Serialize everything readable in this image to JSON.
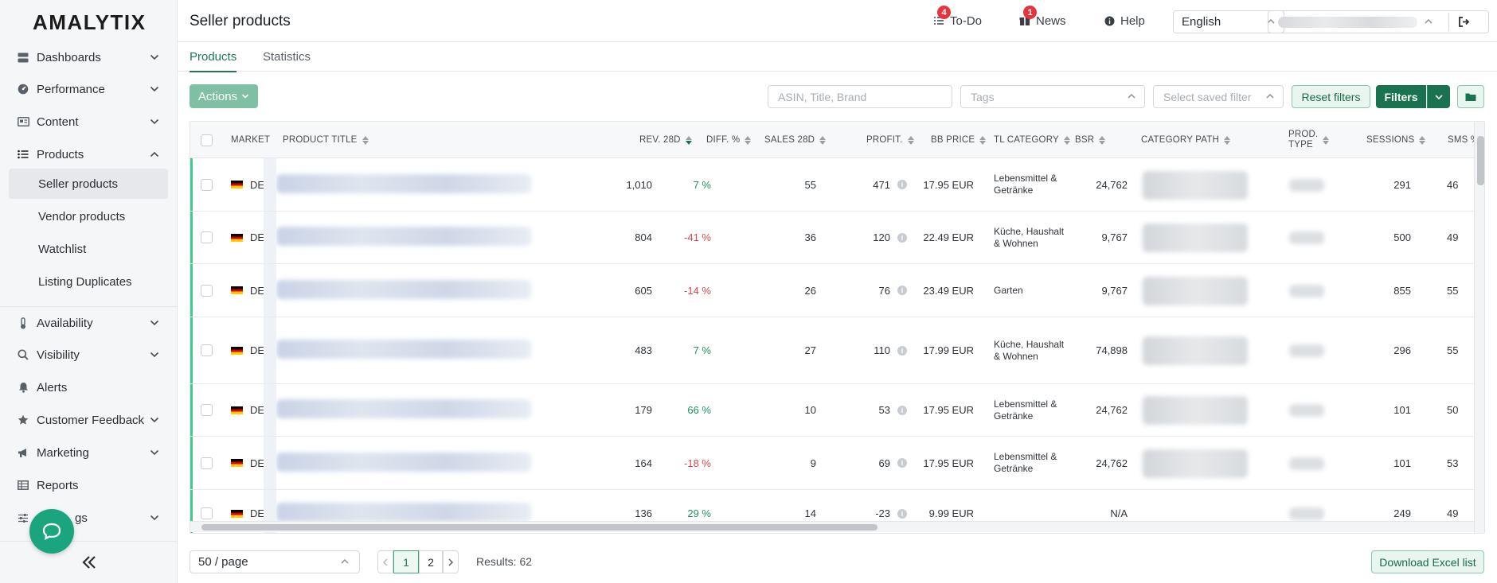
{
  "app": {
    "logo": "AMALYTIX"
  },
  "sidebar": {
    "items": [
      {
        "label": "Dashboards",
        "icon": "server-icon"
      },
      {
        "label": "Performance",
        "icon": "gauge-icon"
      },
      {
        "label": "Content",
        "icon": "content-icon"
      },
      {
        "label": "Products",
        "icon": "list-icon"
      },
      {
        "label": "Availability",
        "icon": "thermometer-icon"
      },
      {
        "label": "Visibility",
        "icon": "search-icon"
      },
      {
        "label": "Alerts",
        "icon": "bell-icon"
      },
      {
        "label": "Customer Feedback",
        "icon": "star-icon"
      },
      {
        "label": "Marketing",
        "icon": "megaphone-icon"
      },
      {
        "label": "Reports",
        "icon": "table-icon"
      },
      {
        "label": "Settings",
        "icon": "sliders-icon"
      }
    ],
    "settings_visible_label": "gs",
    "products_sub": [
      {
        "label": "Seller products",
        "active": true
      },
      {
        "label": "Vendor products",
        "active": false
      },
      {
        "label": "Watchlist",
        "active": false
      },
      {
        "label": "Listing Duplicates",
        "active": false
      }
    ]
  },
  "header": {
    "title": "Seller products",
    "todo": {
      "label": "To-Do",
      "count": "4"
    },
    "news": {
      "label": "News",
      "count": "1"
    },
    "help": {
      "label": "Help"
    },
    "language": "English"
  },
  "tabs": [
    {
      "label": "Products",
      "active": true
    },
    {
      "label": "Statistics",
      "active": false
    }
  ],
  "toolbar": {
    "actions_label": "Actions",
    "search_placeholder": "ASIN, Title, Brand",
    "tags_placeholder": "Tags",
    "saved_filter_placeholder": "Select saved filter",
    "reset_label": "Reset filters",
    "filters_label": "Filters"
  },
  "table": {
    "columns": {
      "market": "MARKET",
      "title": "PRODUCT TITLE",
      "rev": "REV. 28D",
      "diff": "DIFF. %",
      "sales": "SALES 28D",
      "profit": "PROFIT.",
      "bb": "BB PRICE",
      "tl": "TL CATEGORY",
      "bsr": "BSR",
      "path": "CATEGORY PATH",
      "prod1": "PROD.",
      "prod2": "TYPE",
      "sessions": "SESSIONS",
      "sms": "SMS %"
    },
    "rows": [
      {
        "market": "DE",
        "rev": "1,010",
        "diff": "7 %",
        "diff_sign": "pos",
        "sales": "55",
        "profit": "471",
        "bb": "17.95 EUR",
        "tl": "Lebensmittel & Getränke",
        "bsr": "24,762",
        "sessions": "291",
        "sms": "46"
      },
      {
        "market": "DE",
        "rev": "804",
        "diff": "-41 %",
        "diff_sign": "neg",
        "sales": "36",
        "profit": "120",
        "bb": "22.49 EUR",
        "tl": "Küche, Haushalt & Wohnen",
        "bsr": "9,767",
        "sessions": "500",
        "sms": "49"
      },
      {
        "market": "DE",
        "rev": "605",
        "diff": "-14 %",
        "diff_sign": "neg",
        "sales": "26",
        "profit": "76",
        "bb": "23.49 EUR",
        "tl": "Garten",
        "bsr": "9,767",
        "sessions": "855",
        "sms": "55"
      },
      {
        "market": "DE",
        "rev": "483",
        "diff": "7 %",
        "diff_sign": "pos",
        "sales": "27",
        "profit": "110",
        "bb": "17.99 EUR",
        "tl": "Küche, Haushalt & Wohnen",
        "bsr": "74,898",
        "sessions": "296",
        "sms": "55"
      },
      {
        "market": "DE",
        "rev": "179",
        "diff": "66 %",
        "diff_sign": "pos",
        "sales": "10",
        "profit": "53",
        "bb": "17.95 EUR",
        "tl": "Lebensmittel & Getränke",
        "bsr": "24,762",
        "sessions": "101",
        "sms": "50"
      },
      {
        "market": "DE",
        "rev": "164",
        "diff": "-18 %",
        "diff_sign": "neg",
        "sales": "9",
        "profit": "69",
        "bb": "17.95 EUR",
        "tl": "Lebensmittel & Getränke",
        "bsr": "24,762",
        "sessions": "101",
        "sms": "53"
      },
      {
        "market": "DE",
        "rev": "136",
        "diff": "29 %",
        "diff_sign": "pos",
        "sales": "14",
        "profit": "-23",
        "bb": "9.99 EUR",
        "tl": "",
        "bsr": "N/A",
        "sessions": "249",
        "sms": "49"
      }
    ]
  },
  "footer": {
    "page_size": "50 / page",
    "pages": [
      "1",
      "2"
    ],
    "current_page": "1",
    "results": "Results: 62",
    "download_label": "Download Excel list"
  },
  "colors": {
    "brand": "#1a7350",
    "positive": "#1f9160",
    "negative": "#e0444b",
    "row_marker": "#3fcb8e"
  }
}
